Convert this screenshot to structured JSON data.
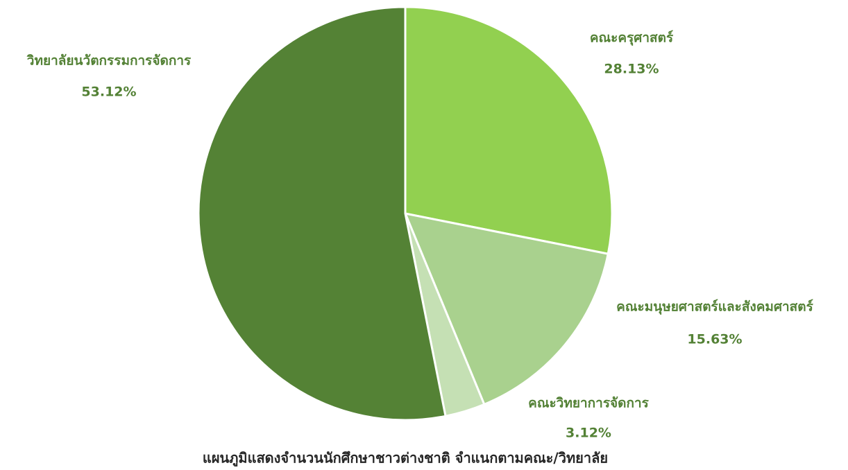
{
  "chart_data": {
    "type": "pie",
    "title": "แผนภูมิแสดงจำนวนนักศึกษาชาวต่างชาติ จำแนกตามคณะ/วิทยาลัย",
    "categories": [
      "คณะครุศาสตร์",
      "คณะมนุษยศาสตร์และสังคมศาสตร์",
      "คณะวิทยาการจัดการ",
      "วิทยาลัยนวัตกรรมการจัดการ"
    ],
    "values": [
      28.13,
      15.63,
      3.12,
      53.12
    ],
    "value_labels": [
      "28.13%",
      "15.63%",
      "3.12%",
      "53.12%"
    ],
    "colors": [
      "#92d050",
      "#a9d18e",
      "#c5e0b4",
      "#548235"
    ]
  }
}
